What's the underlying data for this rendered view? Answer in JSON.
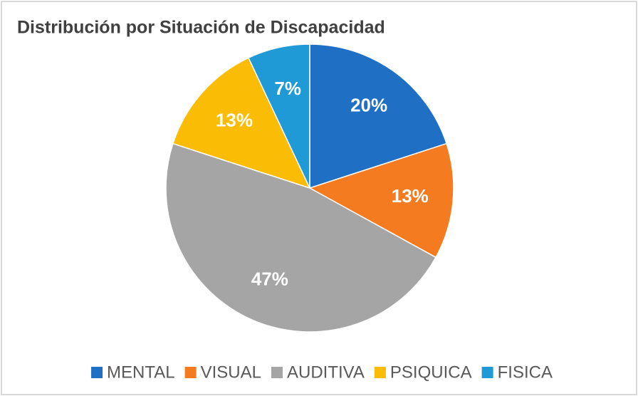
{
  "chart_data": {
    "type": "pie",
    "title": "Distribución por Situación de Discapacidad",
    "categories": [
      "MENTAL",
      "VISUAL",
      "AUDITIVA",
      "PSIQUICA",
      "FISICA"
    ],
    "values": [
      20,
      13,
      47,
      13,
      7
    ],
    "value_labels": [
      "20%",
      "13%",
      "47%",
      "13%",
      "7%"
    ],
    "colors": [
      "#1f6fc5",
      "#f47b20",
      "#a5a5a5",
      "#fbbc05",
      "#1f9ad6"
    ],
    "legend": "bottom"
  }
}
